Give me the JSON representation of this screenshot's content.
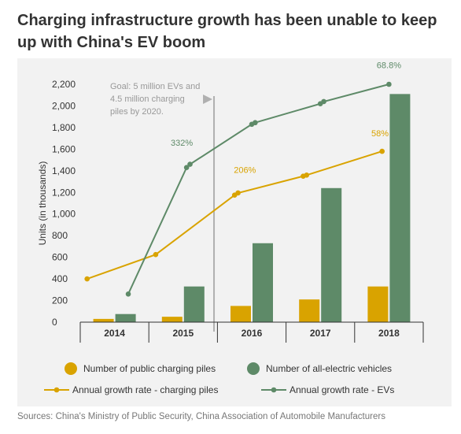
{
  "title": "Charging infrastructure growth has been unable to keep up with China's EV boom",
  "source": "Sources: China's Ministry of Public Security, China Association of Automobile Manufacturers",
  "colors": {
    "piles": "#d9a300",
    "evs": "#5e8a68",
    "panel": "#f2f2f2",
    "annotation": "#b0b0b0"
  },
  "chart_data": {
    "type": "bar",
    "categories": [
      "2014",
      "2015",
      "2016",
      "2017",
      "2018"
    ],
    "ylabel": "Units (in thousands)",
    "ylim": [
      0,
      2200
    ],
    "yticks": [
      0,
      200,
      400,
      600,
      800,
      1000,
      1200,
      1400,
      1600,
      1800,
      2000,
      2200
    ],
    "ytick_labels": [
      "0",
      "200",
      "400",
      "600",
      "800",
      "1,000",
      "1,200",
      "1,400",
      "1,600",
      "1,800",
      "2,000",
      "2,200"
    ],
    "series": [
      {
        "name": "Number of public charging piles",
        "kind": "bar",
        "color": "#d9a300",
        "values": [
          30,
          50,
          150,
          210,
          330
        ]
      },
      {
        "name": "Number of all-electric vehicles",
        "kind": "bar",
        "color": "#5e8a68",
        "values": [
          75,
          330,
          730,
          1240,
          2110
        ]
      },
      {
        "name": "Annual growth rate - charging piles",
        "kind": "line",
        "color": "#d9a300",
        "points": [
          {
            "x": 2013.6,
            "y": 400
          },
          {
            "x": 2014.6,
            "y": 625
          },
          {
            "x": 2015.75,
            "y": 1175
          },
          {
            "x": 2015.8,
            "y": 1195
          },
          {
            "x": 2016.75,
            "y": 1350
          },
          {
            "x": 2016.8,
            "y": 1360
          },
          {
            "x": 2017.9,
            "y": 1580
          }
        ]
      },
      {
        "name": "Annual growth rate - EVs",
        "kind": "line",
        "color": "#5e8a68",
        "points": [
          {
            "x": 2014.2,
            "y": 260
          },
          {
            "x": 2015.05,
            "y": 1430
          },
          {
            "x": 2015.1,
            "y": 1460
          },
          {
            "x": 2016.0,
            "y": 1830
          },
          {
            "x": 2016.05,
            "y": 1845
          },
          {
            "x": 2017.0,
            "y": 2020
          },
          {
            "x": 2017.05,
            "y": 2040
          },
          {
            "x": 2018.0,
            "y": 2200
          }
        ]
      }
    ],
    "point_labels": [
      {
        "text": "332%",
        "x": 2014.98,
        "y": 1630,
        "color": "#5e8a68"
      },
      {
        "text": "206%",
        "x": 2015.9,
        "y": 1380,
        "color": "#d9a300"
      },
      {
        "text": "58%",
        "x": 2017.87,
        "y": 1720,
        "color": "#d9a300"
      },
      {
        "text": "68.8%",
        "x": 2018.0,
        "y": 2350,
        "color": "#5e8a68"
      }
    ],
    "annotation": {
      "lines": [
        "Goal: 5 million EVs and",
        "4.5 million charging",
        "piles by 2020."
      ],
      "x": 2015.45
    },
    "grid": false,
    "legend_position": "bottom"
  }
}
